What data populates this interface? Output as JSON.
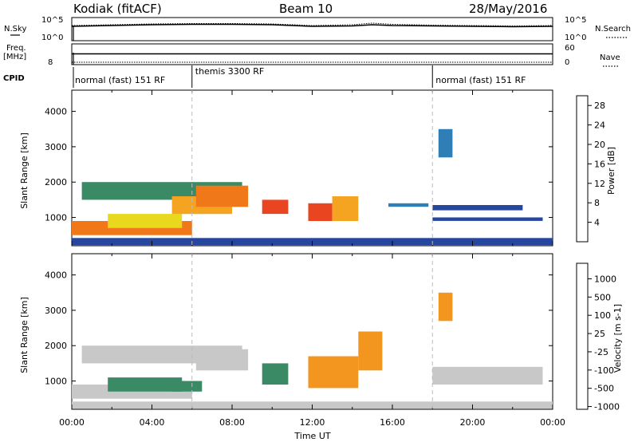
{
  "header": {
    "station": "Kodiak (fitACF)",
    "beam": "Beam 10",
    "date": "28/May/2016"
  },
  "left_labels": {
    "nsky": "N.Sky",
    "freq_line1": "Freq.",
    "freq_line2": "[MHz]",
    "cpid": "CPID"
  },
  "right_labels": {
    "nsearch": "N.Search",
    "nave": "Nave"
  },
  "cpid_segments": [
    {
      "label": "normal (fast) 151 RF",
      "start_h": 0,
      "end_h": 6
    },
    {
      "label": "themis 3300 RF",
      "start_h": 6,
      "end_h": 18
    },
    {
      "label": "normal (fast) 151 RF",
      "start_h": 18,
      "end_h": 24
    }
  ],
  "chart_data": [
    {
      "type": "line",
      "panel": "noise",
      "ylabel": "N.Sky",
      "y_ticks_left": [
        "10^5",
        "10^0"
      ],
      "y_ticks_right": [
        "10^5",
        "10^0"
      ],
      "series": [
        {
          "name": "N.Sky",
          "x_hours": [
            0,
            2,
            4,
            6,
            8,
            10,
            12,
            14,
            15,
            16,
            18,
            20,
            22,
            24
          ],
          "log_values": [
            3.4,
            3.6,
            3.8,
            3.9,
            3.9,
            3.8,
            3.4,
            3.5,
            3.8,
            3.6,
            3.5,
            3.4,
            3.3,
            3.4
          ]
        },
        {
          "name": "N.Search",
          "x_hours": [
            0,
            2,
            4,
            6,
            8,
            10,
            12,
            14,
            15,
            16,
            18,
            20,
            22,
            24
          ],
          "log_values": [
            3.6,
            3.8,
            4.0,
            4.1,
            4.1,
            4.0,
            3.6,
            3.8,
            4.2,
            3.9,
            3.7,
            3.6,
            3.5,
            3.6
          ]
        }
      ]
    },
    {
      "type": "line",
      "panel": "frequency",
      "ylabel": "Freq. [MHz]",
      "y_ticks_left": [
        "8"
      ],
      "y_ticks_right": [
        "60",
        "0"
      ],
      "series": [
        {
          "name": "Freq.",
          "x_hours": [
            0,
            24
          ],
          "values": [
            10.6,
            10.6
          ]
        },
        {
          "name": "Nave",
          "x_hours": [
            0,
            24
          ],
          "values": [
            5,
            5
          ]
        }
      ]
    },
    {
      "type": "heatmap",
      "panel": "power",
      "ylabel": "Slant Range [km]",
      "ylim": [
        200,
        4600
      ],
      "y_ticks": [
        "1000",
        "2000",
        "3000",
        "4000"
      ],
      "colorbar_label": "Power [dB]",
      "colorbar_ticks": [
        "4",
        "8",
        "12",
        "16",
        "20",
        "24",
        "28"
      ],
      "colorbar_colors": [
        "#0000ff",
        "#2646a0",
        "#2f7eb6",
        "#3a8a66",
        "#4fa85a",
        "#8cc84b",
        "#e8d81e",
        "#f4a420",
        "#f07818",
        "#e94520",
        "#e21a1c"
      ],
      "regions": [
        {
          "t0": 0.0,
          "t1": 6.0,
          "r0": 500,
          "r1": 900,
          "value": 22
        },
        {
          "t0": 1.8,
          "t1": 5.5,
          "r0": 700,
          "r1": 1100,
          "value": 18
        },
        {
          "t0": 0.5,
          "t1": 8.5,
          "r0": 1500,
          "r1": 2000,
          "value": 10
        },
        {
          "t0": 5.0,
          "t1": 8.0,
          "r0": 1100,
          "r1": 1600,
          "value": 20
        },
        {
          "t0": 6.2,
          "t1": 8.8,
          "r0": 1300,
          "r1": 1900,
          "value": 24
        },
        {
          "t0": 9.5,
          "t1": 10.8,
          "r0": 1100,
          "r1": 1500,
          "value": 26
        },
        {
          "t0": 11.8,
          "t1": 13.0,
          "r0": 900,
          "r1": 1400,
          "value": 27
        },
        {
          "t0": 13.0,
          "t1": 14.3,
          "r0": 900,
          "r1": 1600,
          "value": 20
        },
        {
          "t0": 15.8,
          "t1": 17.8,
          "r0": 1300,
          "r1": 1400,
          "value": 6
        },
        {
          "t0": 18.3,
          "t1": 19.0,
          "r0": 2700,
          "r1": 3500,
          "value": 8
        },
        {
          "t0": 18.0,
          "t1": 22.5,
          "r0": 1200,
          "r1": 1350,
          "value": 4
        },
        {
          "t0": 18.0,
          "t1": 23.5,
          "r0": 900,
          "r1": 1000,
          "value": 5
        },
        {
          "t0": 0.0,
          "t1": 24.0,
          "r0": 220,
          "r1": 420,
          "value": 3
        }
      ]
    },
    {
      "type": "heatmap",
      "panel": "velocity",
      "ylabel": "Slant Range [km]",
      "xlabel": "Time UT",
      "ylim": [
        200,
        4600
      ],
      "y_ticks": [
        "1000",
        "2000",
        "3000",
        "4000"
      ],
      "x_ticks": [
        "00:00",
        "04:00",
        "08:00",
        "12:00",
        "16:00",
        "20:00",
        "00:00"
      ],
      "colorbar_label": "Velocity [m s-1]",
      "colorbar_ticks": [
        "1000",
        "500",
        "100",
        "25",
        "-25",
        "-100",
        "-500",
        "-1000"
      ],
      "colorbar_colors": [
        "#1d3fb5",
        "#2a6cb8",
        "#3a8a66",
        "#61c24d",
        "#c8c8c8",
        "#f7c32a",
        "#f3961f",
        "#ee6418",
        "#e21a1c"
      ],
      "regions": [
        {
          "t0": 0.0,
          "t1": 6.0,
          "r0": 500,
          "r1": 900,
          "value": 0
        },
        {
          "t0": 1.8,
          "t1": 5.5,
          "r0": 700,
          "r1": 1100,
          "value": 150
        },
        {
          "t0": 0.5,
          "t1": 8.5,
          "r0": 1500,
          "r1": 2000,
          "value": 0
        },
        {
          "t0": 5.0,
          "t1": 6.5,
          "r0": 700,
          "r1": 1000,
          "value": 200
        },
        {
          "t0": 6.2,
          "t1": 8.8,
          "r0": 1300,
          "r1": 1900,
          "value": 0
        },
        {
          "t0": 9.5,
          "t1": 10.8,
          "r0": 900,
          "r1": 1500,
          "value": 120
        },
        {
          "t0": 11.8,
          "t1": 14.3,
          "r0": 800,
          "r1": 1700,
          "value": -300
        },
        {
          "t0": 14.3,
          "t1": 15.5,
          "r0": 1300,
          "r1": 2400,
          "value": -400
        },
        {
          "t0": 18.3,
          "t1": 19.0,
          "r0": 2700,
          "r1": 3500,
          "value": -400
        },
        {
          "t0": 18.0,
          "t1": 23.5,
          "r0": 900,
          "r1": 1400,
          "value": 0
        },
        {
          "t0": 0.0,
          "t1": 24.0,
          "r0": 220,
          "r1": 420,
          "value": 0
        }
      ]
    }
  ]
}
